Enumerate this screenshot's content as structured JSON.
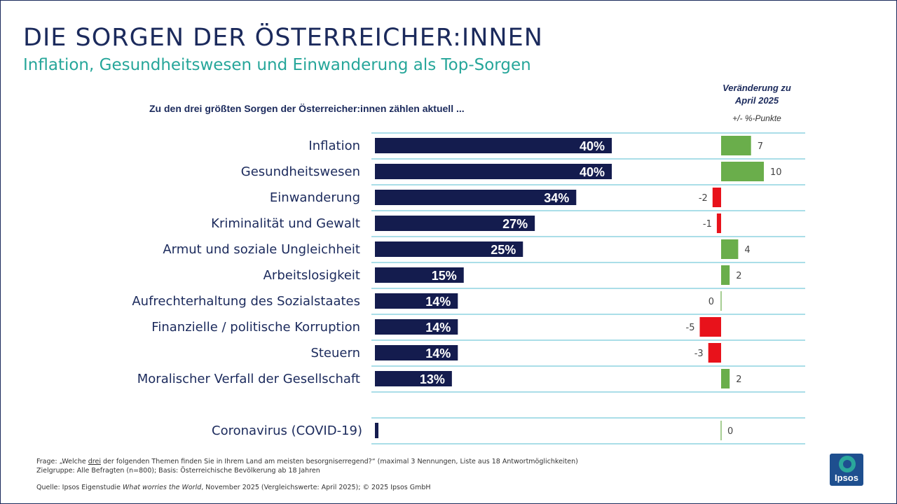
{
  "header": {
    "title": "DIE SORGEN DER ÖSTERREICHER:INNEN",
    "subtitle": "Inflation, Gesundheitswesen und Einwanderung als Top-Sorgen",
    "question": "Zu den drei größten Sorgen der Österreicher:innen zählen aktuell ...",
    "change_title": "Veränderung zu April 2025",
    "change_unit": "+/- %-Punkte"
  },
  "chart_data": {
    "type": "bar",
    "orientation": "horizontal",
    "categories": [
      "Inflation",
      "Gesundheitswesen",
      "Einwanderung",
      "Kriminalität und Gewalt",
      "Armut und soziale Ungleichheit",
      "Arbeitslosigkeit",
      "Aufrechterhaltung des Sozialstaates",
      "Finanzielle / politische Korruption",
      "Steuern",
      "Moralischer Verfall der Gesellschaft",
      "Coronavirus (COVID-19)"
    ],
    "values": [
      40,
      40,
      34,
      27,
      25,
      15,
      14,
      14,
      14,
      13,
      1
    ],
    "value_labels": [
      "40%",
      "40%",
      "34%",
      "27%",
      "25%",
      "15%",
      "14%",
      "14%",
      "14%",
      "13%",
      ""
    ],
    "change": [
      7,
      10,
      -2,
      -1,
      4,
      2,
      0,
      -5,
      -3,
      2,
      0
    ],
    "change_labels": [
      "7",
      "10",
      "-2",
      "-1",
      "4",
      "2",
      "0",
      "-5",
      "-3",
      "2",
      "0"
    ],
    "colors": {
      "bar": "#141c4e",
      "positive": "#6aae4b",
      "negative": "#e8121b",
      "grid": "#8dd3e0"
    }
  },
  "footer": {
    "frage_prefix": "Frage: „Welche ",
    "frage_underlined": "drei",
    "frage_suffix": " der folgenden Themen finden Sie in Ihrem Land am meisten besorgniserregend?“ (maximal 3 Nennungen, Liste aus 18 Antwortmöglichkeiten)",
    "zielgruppe": "Zielgruppe: Alle Befragten (n=800); Basis: Österreichische Bevölkerung ab 18 Jahren",
    "quelle_prefix": "Quelle: Ipsos Eigenstudie ",
    "quelle_italic": "What worries the World",
    "quelle_suffix": ", November 2025 (Vergleichswerte: April 2025); © 2025 Ipsos GmbH"
  },
  "logo": {
    "text": "Ipsos"
  }
}
